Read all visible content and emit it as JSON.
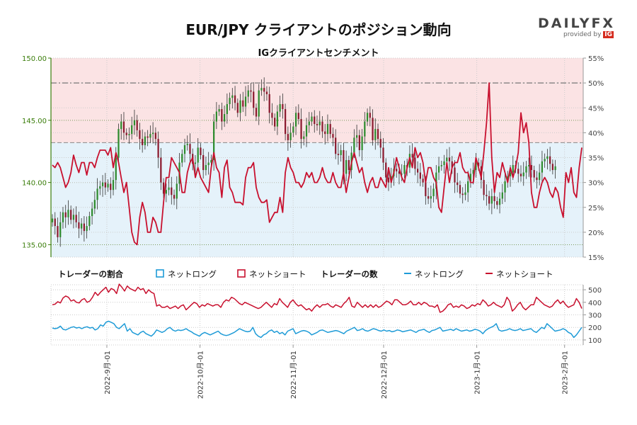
{
  "header": {
    "title": "EUR/JPY クライアントのポジション動向"
  },
  "logo": {
    "brand_main": "DAILY",
    "brand_fx": "FX",
    "provided_by": "provided by",
    "ig": "IG"
  },
  "colors": {
    "long": "#1e9bd7",
    "short": "#c8102e",
    "price_axis": "#3a7d0a",
    "short_bg": "#fbe3e4",
    "long_bg": "#e5f2fa"
  },
  "legend": {
    "ratio_heading": "トレーダーの割合",
    "count_heading": "トレーダーの数",
    "net_long": "ネットロング",
    "net_short": "ネットショート"
  },
  "chart_data": [
    {
      "type": "candlestick+line",
      "title": "IGクライアントセンチメント",
      "y_left": {
        "label": "",
        "range": [
          134,
          150
        ],
        "ticks": [
          "135.00",
          "140.00",
          "145.00",
          "150.00"
        ]
      },
      "y_right": {
        "label": "",
        "range": [
          15,
          55
        ],
        "ticks": [
          "15%",
          "20%",
          "25%",
          "30%",
          "35%",
          "40%",
          "45%",
          "50%",
          "55%"
        ]
      },
      "reference_levels_pct": [
        50
      ],
      "reference_levels_price": [
        143.2
      ],
      "series": [
        {
          "name": "ネットショート",
          "axis": "right",
          "values": [
            33.5,
            33,
            34,
            33,
            31,
            29,
            30,
            32,
            35.5,
            33.5,
            32,
            34,
            34,
            31.5,
            34,
            34,
            33,
            35,
            36.5,
            36.5,
            36.5,
            35.5,
            37,
            33,
            36,
            34,
            31,
            28,
            30,
            25,
            20,
            18,
            17.5,
            23,
            26,
            24,
            20,
            20,
            23,
            22,
            20,
            20,
            26,
            31,
            31,
            35,
            34,
            33,
            32,
            28,
            28,
            32,
            34,
            35,
            31,
            33,
            31,
            30,
            29,
            28,
            33,
            36,
            33,
            32,
            27,
            33,
            34.5,
            29,
            28,
            26,
            26,
            26,
            25.5,
            31,
            33,
            33,
            34,
            29,
            27,
            26,
            26,
            26.5,
            22,
            23,
            24,
            24,
            27,
            24,
            32,
            35,
            33,
            32,
            30,
            30,
            29,
            30,
            32,
            31,
            32,
            30,
            30,
            31,
            33,
            31,
            30,
            30,
            32,
            30,
            29,
            29,
            32,
            28,
            31,
            34,
            36,
            34,
            32,
            33,
            30,
            28,
            30,
            31,
            29,
            29,
            31,
            30,
            29,
            33,
            30,
            32,
            35,
            33,
            31,
            30,
            33,
            35,
            33,
            37,
            35,
            36,
            34,
            30,
            33,
            33,
            31,
            30,
            25,
            24,
            29,
            34,
            30,
            33,
            34,
            34,
            36,
            33,
            32,
            32,
            30,
            30,
            35,
            33,
            31,
            36,
            42,
            50,
            35,
            28,
            32,
            31,
            34,
            32,
            30,
            33,
            31,
            33,
            36,
            44,
            40,
            42,
            38,
            28,
            25,
            25,
            28,
            30,
            31,
            30,
            28,
            27,
            29,
            28,
            25,
            23,
            32,
            30,
            33,
            28,
            27,
            33,
            37
          ]
        },
        {
          "name": "EUR/JPY",
          "axis": "left",
          "kind": "candles",
          "close": [
            137.1,
            136.5,
            135.6,
            136.8,
            137.6,
            137.2,
            137.8,
            137.0,
            137.4,
            136.8,
            136.3,
            136.7,
            136.1,
            136.5,
            137.3,
            137.9,
            138.6,
            139.5,
            139.7,
            140.0,
            139.6,
            139.9,
            139.4,
            140.2,
            142.0,
            144.3,
            144.9,
            144.0,
            143.8,
            143.9,
            144.6,
            145.0,
            144.2,
            143.5,
            143.0,
            143.7,
            143.6,
            143.9,
            144.0,
            143.5,
            142.0,
            140.0,
            139.1,
            139.4,
            139.6,
            139.0,
            138.7,
            139.9,
            141.6,
            142.3,
            143.0,
            143.1,
            142.3,
            141.5,
            141.6,
            142.8,
            142.2,
            141.0,
            141.4,
            141.6,
            141.8,
            144.9,
            145.7,
            145.9,
            144.9,
            145.5,
            146.3,
            146.8,
            147.0,
            146.4,
            145.6,
            146.6,
            146.1,
            146.9,
            147.4,
            147.3,
            146.0,
            145.3,
            147.4,
            147.6,
            147.3,
            147.1,
            145.6,
            145.2,
            144.5,
            145.7,
            146.3,
            145.9,
            143.9,
            143.4,
            144.0,
            144.5,
            145.6,
            145.1,
            143.5,
            143.7,
            144.6,
            144.9,
            145.3,
            144.7,
            144.6,
            144.9,
            144.1,
            143.9,
            144.7,
            143.9,
            143.6,
            142.3,
            142.2,
            142.6,
            140.7,
            141.8,
            141.0,
            142.4,
            143.6,
            143.8,
            142.6,
            143.7,
            144.9,
            145.6,
            145.2,
            143.4,
            144.3,
            143.5,
            142.8,
            141.6,
            140.4,
            140.0,
            140.5,
            141.1,
            140.9,
            140.7,
            140.7,
            141.4,
            141.2,
            142.3,
            142.0,
            141.1,
            140.8,
            140.3,
            140.0,
            138.9,
            138.7,
            138.9,
            139.5,
            140.8,
            141.3,
            141.4,
            141.7,
            142.0,
            141.7,
            141.2,
            140.0,
            139.8,
            139.1,
            139.0,
            139.2,
            140.1,
            140.7,
            141.0,
            141.6,
            141.3,
            140.2,
            139.0,
            138.9,
            138.3,
            138.9,
            138.5,
            138.2,
            138.7,
            139.2,
            140.1,
            140.5,
            140.8,
            141.4,
            141.1,
            140.7,
            140.5,
            140.8,
            141.3,
            141.4,
            141.0,
            140.4,
            140.2,
            140.8,
            141.7,
            141.9,
            142.1,
            141.5,
            141.0,
            141.3
          ]
        }
      ]
    },
    {
      "type": "line",
      "title": "",
      "y": {
        "label": "",
        "range": [
          60,
          540
        ],
        "ticks": [
          "100",
          "200",
          "300",
          "400",
          "500"
        ]
      },
      "x_ticks": [
        "2022-9月-01",
        "2022-10月-01",
        "2022-11月-01",
        "2022-12月-01",
        "2023-1月-01",
        "2023-2月-01"
      ],
      "series": [
        {
          "name": "ネットショート",
          "values": [
            380,
            385,
            405,
            395,
            435,
            450,
            440,
            410,
            420,
            400,
            395,
            420,
            430,
            400,
            410,
            440,
            480,
            455,
            480,
            500,
            520,
            480,
            510,
            500,
            470,
            545,
            520,
            490,
            530,
            510,
            500,
            490,
            520,
            500,
            510,
            470,
            500,
            480,
            470,
            370,
            380,
            360,
            360,
            370,
            350,
            360,
            370,
            350,
            370,
            380,
            340,
            360,
            380,
            400,
            390,
            360,
            380,
            370,
            390,
            380,
            370,
            380,
            380,
            360,
            400,
            420,
            410,
            440,
            430,
            410,
            390,
            380,
            400,
            390,
            380,
            370,
            360,
            350,
            360,
            380,
            400,
            380,
            360,
            390,
            380,
            430,
            400,
            380,
            360,
            400,
            420,
            390,
            370,
            380,
            360,
            340,
            350,
            330,
            360,
            380,
            360,
            380,
            380,
            390,
            370,
            360,
            380,
            370,
            360,
            390,
            410,
            440,
            370,
            360,
            400,
            380,
            360,
            380,
            360,
            380,
            360,
            380,
            360,
            370,
            390,
            410,
            400,
            380,
            420,
            420,
            400,
            380,
            380,
            390,
            410,
            380,
            380,
            400,
            380,
            400,
            390,
            370,
            370,
            360,
            380,
            320,
            330,
            350,
            380,
            390,
            360,
            370,
            360,
            380,
            370,
            350,
            360,
            380,
            370,
            390,
            380,
            420,
            400,
            370,
            380,
            400,
            380,
            370,
            360,
            380,
            440,
            410,
            330,
            350,
            380,
            400,
            360,
            340,
            360,
            380,
            380,
            440,
            420,
            400,
            380,
            370,
            360,
            370,
            400,
            420,
            390,
            410,
            380,
            360,
            370,
            380,
            430,
            400,
            350
          ]
        },
        {
          "name": "ネットロング",
          "values": [
            195,
            190,
            195,
            210,
            185,
            180,
            190,
            200,
            205,
            195,
            200,
            190,
            200,
            205,
            195,
            200,
            180,
            190,
            220,
            210,
            240,
            250,
            240,
            230,
            200,
            190,
            210,
            230,
            170,
            190,
            160,
            150,
            140,
            160,
            170,
            150,
            140,
            130,
            150,
            180,
            170,
            160,
            170,
            190,
            200,
            180,
            170,
            180,
            175,
            180,
            190,
            175,
            165,
            150,
            140,
            130,
            150,
            160,
            150,
            140,
            150,
            160,
            170,
            150,
            140,
            135,
            140,
            150,
            160,
            175,
            190,
            180,
            170,
            165,
            170,
            200,
            150,
            130,
            120,
            140,
            150,
            170,
            180,
            160,
            170,
            150,
            160,
            140,
            170,
            180,
            190,
            150,
            160,
            170,
            175,
            170,
            160,
            140,
            150,
            160,
            175,
            180,
            170,
            160,
            165,
            170,
            175,
            170,
            160,
            150,
            170,
            180,
            190,
            200,
            175,
            180,
            190,
            175,
            170,
            180,
            190,
            185,
            175,
            170,
            180,
            170,
            175,
            165,
            170,
            180,
            175,
            165,
            170,
            175,
            180,
            170,
            160,
            175,
            180,
            185,
            170,
            160,
            175,
            180,
            190,
            200,
            170,
            175,
            180,
            185,
            175,
            190,
            180,
            170,
            175,
            180,
            170,
            175,
            185,
            180,
            170,
            150,
            175,
            190,
            200,
            210,
            230,
            180,
            170,
            175,
            180,
            190,
            180,
            175,
            180,
            190,
            175,
            180,
            185,
            190,
            170,
            160,
            180,
            200,
            190,
            230,
            210,
            190,
            170,
            175,
            180,
            190,
            180,
            160,
            150,
            120,
            140,
            170,
            200
          ]
        }
      ]
    }
  ]
}
